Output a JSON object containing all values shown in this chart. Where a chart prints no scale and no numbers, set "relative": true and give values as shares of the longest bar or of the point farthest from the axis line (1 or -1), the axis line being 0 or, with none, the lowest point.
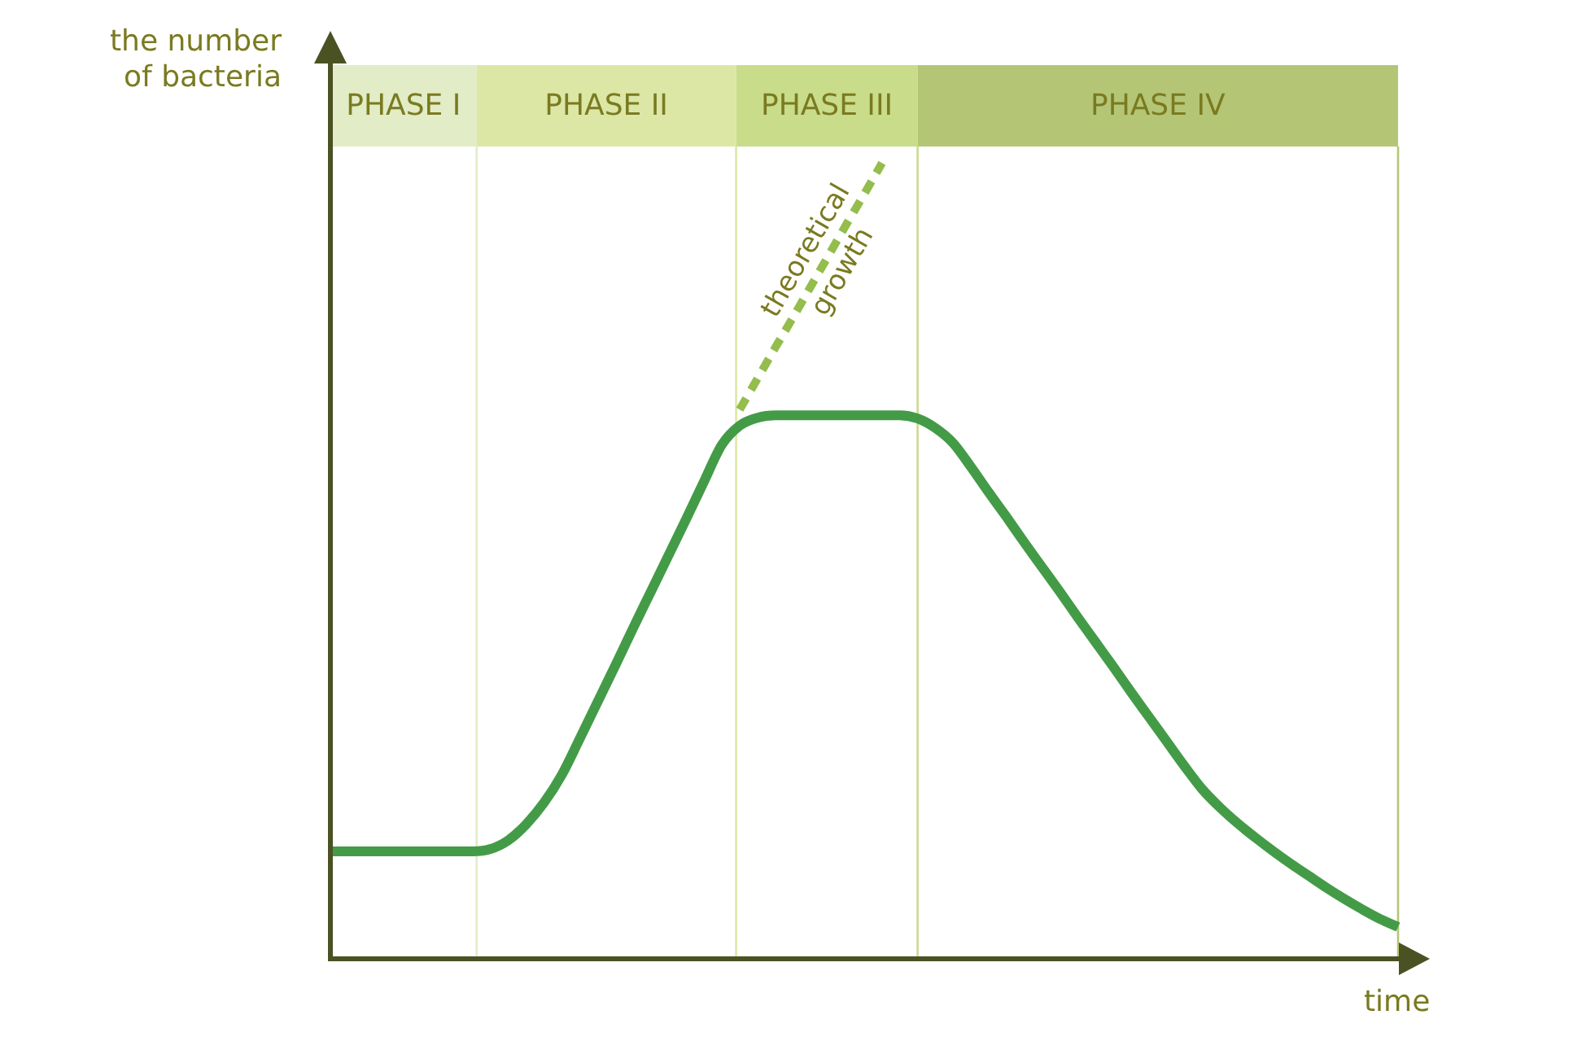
{
  "chart_data": {
    "type": "line",
    "relative": true,
    "tick_labels": false,
    "grid": false,
    "legend": false,
    "marker": "none",
    "ylabel": "the number of bacteria",
    "xlabel": "time",
    "annotations": [
      "PHASE I",
      "PHASE II",
      "PHASE III",
      "PHASE IV"
    ],
    "categories": [
      null,
      null,
      null,
      null,
      null,
      null,
      null,
      null,
      null,
      null,
      null,
      null,
      null,
      null,
      null,
      null,
      null,
      null,
      null,
      null,
      null,
      null,
      null,
      null,
      null,
      null,
      null,
      null,
      null,
      null,
      null,
      null,
      null,
      null,
      null,
      null,
      null,
      null,
      null,
      null,
      null,
      null,
      null,
      null,
      null,
      null,
      null,
      null,
      null,
      null,
      null,
      null,
      null,
      null,
      null,
      null,
      null,
      null,
      null,
      null,
      null
    ],
    "series": [
      {
        "color": "#449b47",
        "line_style": "solid",
        "values": [
          0.135,
          0.135,
          0.135,
          0.135,
          0.135,
          0.135,
          0.135,
          0.135,
          0.135,
          0.138,
          0.149,
          0.169,
          0.196,
          0.231,
          0.276,
          0.322,
          0.368,
          0.415,
          0.461,
          0.507,
          0.553,
          0.6,
          0.646,
          0.67,
          0.68,
          0.683,
          0.683,
          0.683,
          0.683,
          0.683,
          0.683,
          0.683,
          0.683,
          0.679,
          0.667,
          0.648,
          0.618,
          0.586,
          0.555,
          0.523,
          0.492,
          0.461,
          0.429,
          0.398,
          0.367,
          0.335,
          0.304,
          0.273,
          0.242,
          0.213,
          0.19,
          0.17,
          0.152,
          0.135,
          0.119,
          0.104,
          0.089,
          0.075,
          0.062,
          0.05,
          0.04
        ]
      },
      {
        "name": "theoretical growth",
        "color": "#93bd4c",
        "line_style": "dashed",
        "values": [
          null,
          null,
          null,
          null,
          null,
          null,
          null,
          null,
          null,
          null,
          null,
          null,
          null,
          null,
          null,
          null,
          null,
          null,
          null,
          null,
          null,
          null,
          null,
          0.69,
          0.729,
          0.768,
          0.806,
          0.845,
          0.884,
          0.923,
          0.961,
          1,
          null,
          null,
          null,
          null,
          null,
          null,
          null,
          null,
          null,
          null,
          null,
          null,
          null,
          null,
          null,
          null,
          null,
          null,
          null,
          null,
          null,
          null,
          null,
          null,
          null,
          null,
          null,
          null,
          null
        ]
      }
    ]
  }
}
